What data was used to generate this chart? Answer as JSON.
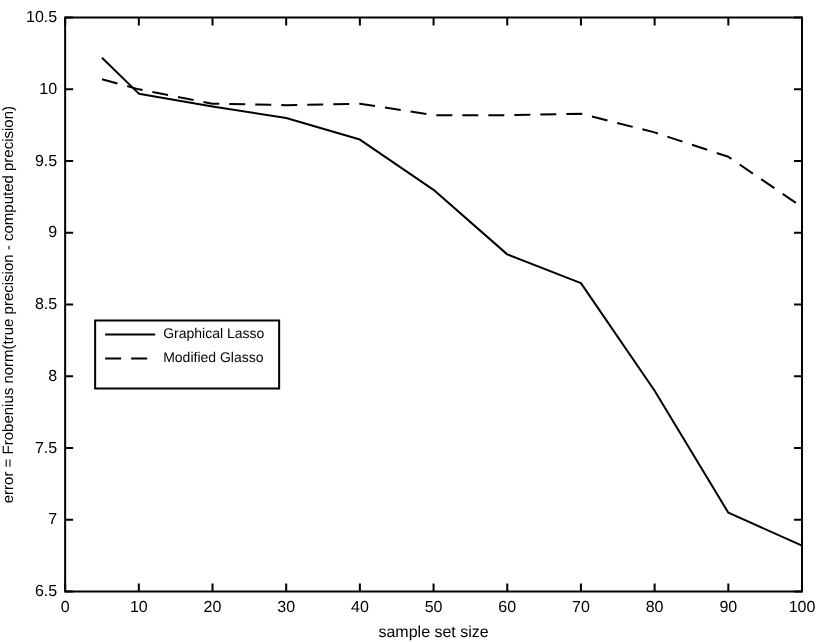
{
  "chart_data": {
    "type": "line",
    "xlabel": "sample set size",
    "ylabel": "error = Frobenius norm(true precision - computed precision)",
    "xlim": [
      0,
      100
    ],
    "xticks": [
      0,
      10,
      20,
      30,
      40,
      50,
      60,
      70,
      80,
      90,
      100
    ],
    "ylim": [
      6.5,
      10.5
    ],
    "yticks": [
      6.5,
      7,
      7.5,
      8,
      8.5,
      9,
      9.5,
      10,
      10.5
    ],
    "grid": false,
    "legend": "left",
    "marker": "none",
    "series": [
      {
        "name": "Graphical Lasso",
        "color": "#000000",
        "line_style": "solid",
        "x": [
          5,
          10,
          20,
          30,
          40,
          50,
          60,
          70,
          80,
          90,
          100
        ],
        "values": [
          10.22,
          9.97,
          9.88,
          9.8,
          9.65,
          9.3,
          8.85,
          8.65,
          7.9,
          7.05,
          6.82
        ]
      },
      {
        "name": "Modified Glasso",
        "color": "#000000",
        "line_style": "dashed",
        "x": [
          5,
          10,
          20,
          30,
          40,
          50,
          60,
          70,
          80,
          90,
          100
        ],
        "values": [
          10.07,
          10.0,
          9.9,
          9.89,
          9.9,
          9.82,
          9.82,
          9.83,
          9.7,
          9.53,
          9.18
        ]
      }
    ]
  }
}
